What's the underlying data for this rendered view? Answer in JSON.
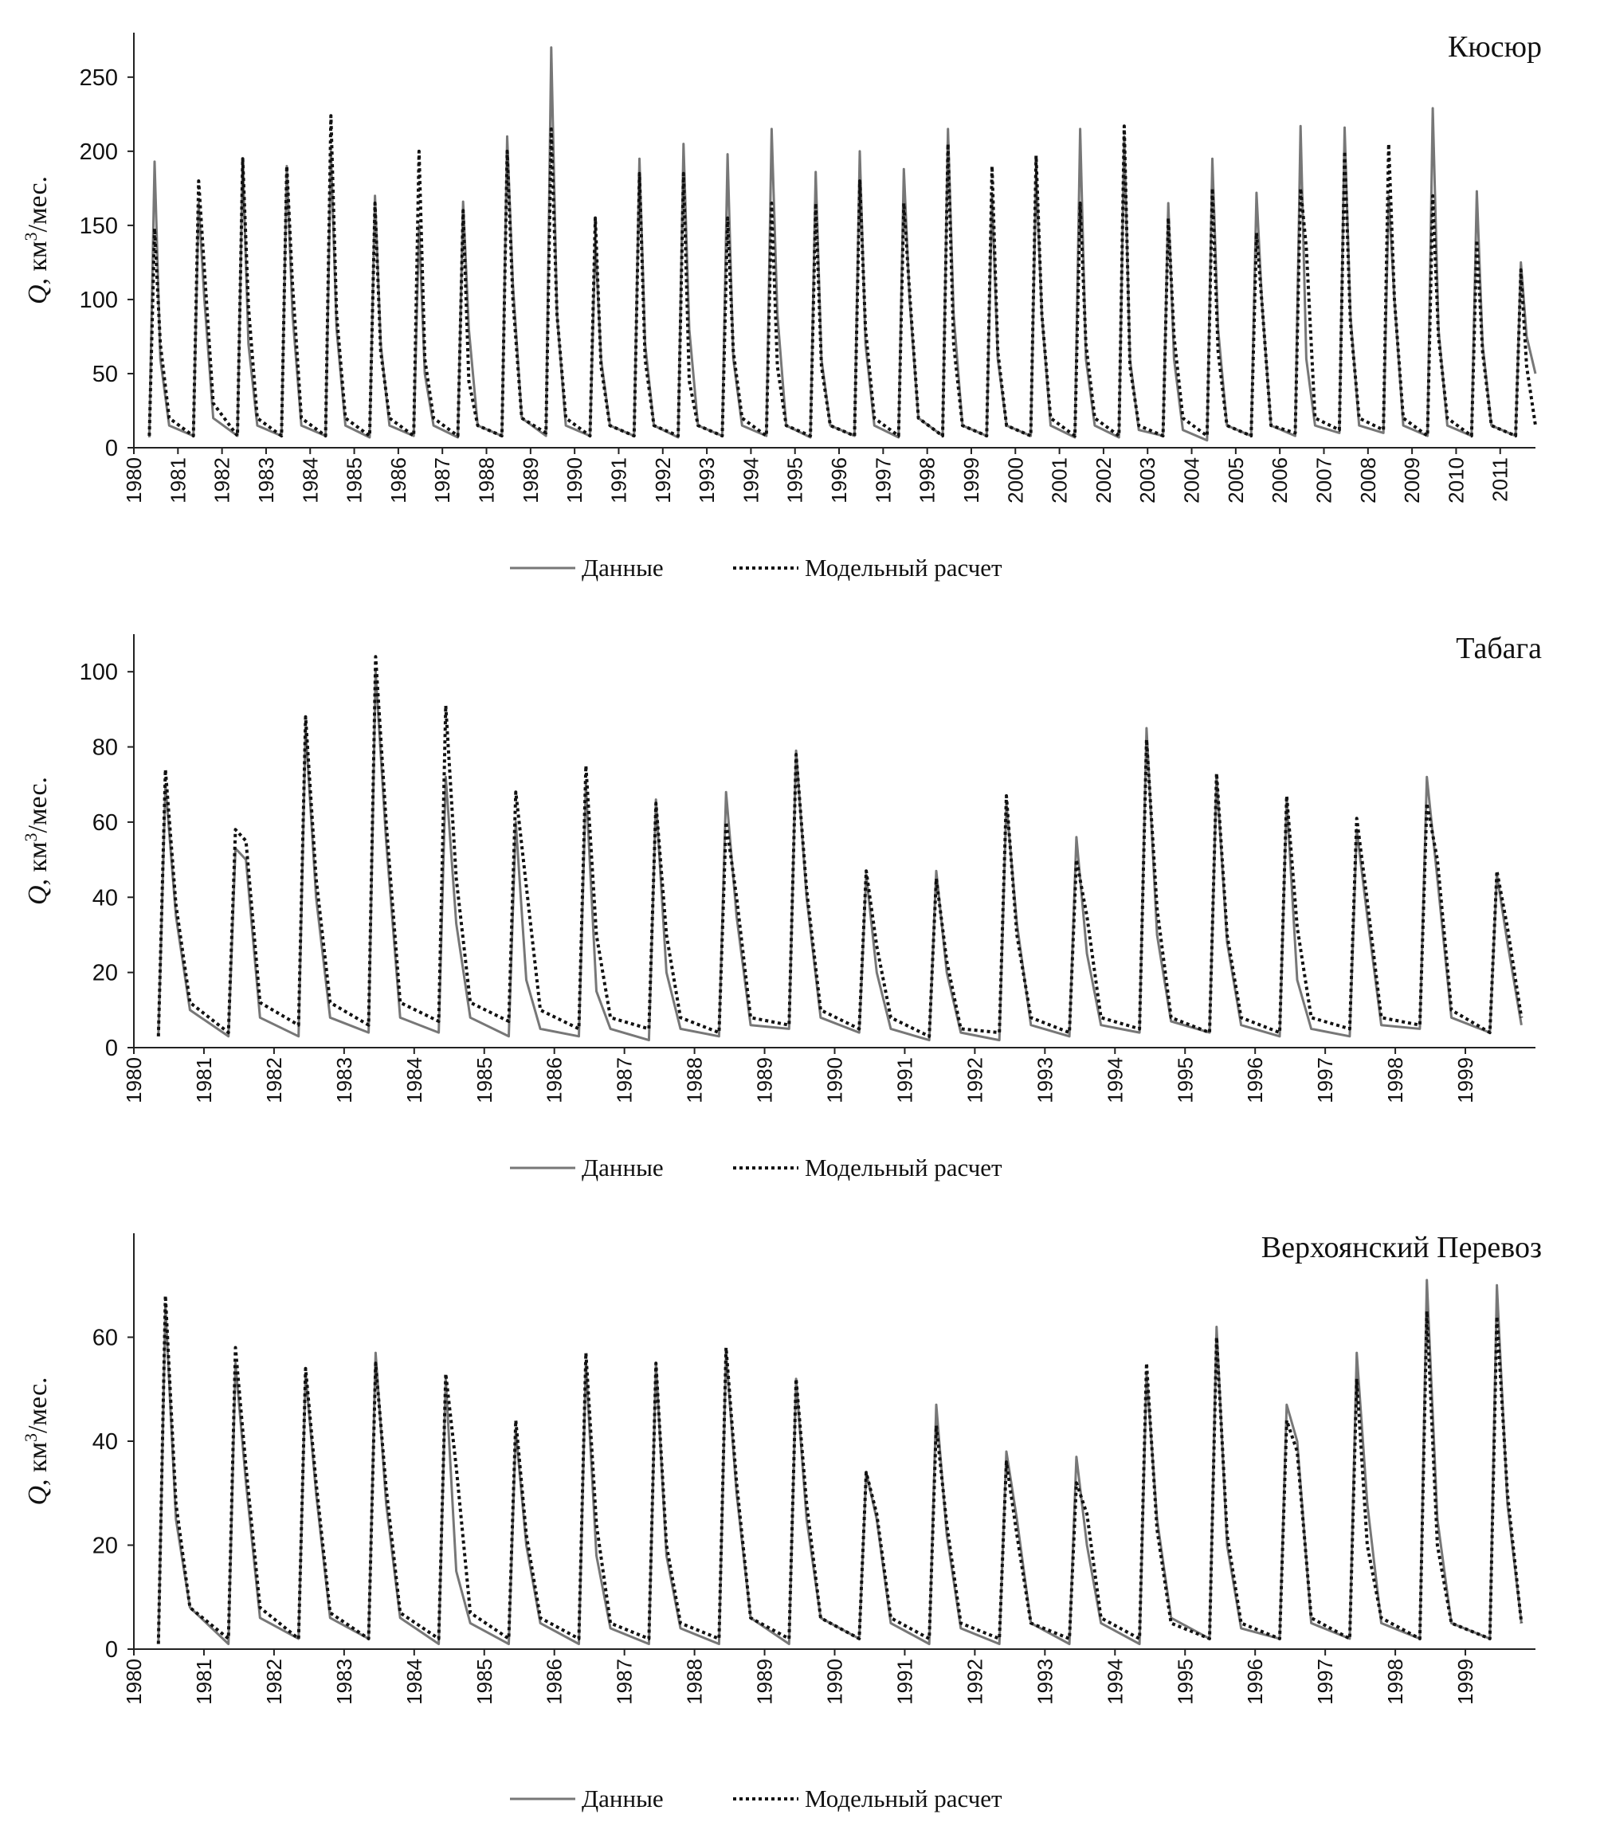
{
  "chart_data": [
    {
      "type": "line",
      "title": "Кюсюр",
      "ylabel": {
        "symbol": "Q",
        "unit": ", км",
        "power": "3",
        "rest": "/мес."
      },
      "x": [
        1980.35,
        1980.47,
        1980.6,
        1980.8,
        1981.35,
        1981.47,
        1981.6,
        1981.8,
        1982.35,
        1982.47,
        1982.6,
        1982.8,
        1983.35,
        1983.47,
        1983.6,
        1983.8,
        1984.35,
        1984.47,
        1984.6,
        1984.8,
        1985.35,
        1985.47,
        1985.6,
        1985.8,
        1986.35,
        1986.47,
        1986.6,
        1986.8,
        1987.35,
        1987.47,
        1987.6,
        1987.8,
        1988.35,
        1988.47,
        1988.6,
        1988.8,
        1989.35,
        1989.47,
        1989.6,
        1989.8,
        1990.35,
        1990.47,
        1990.6,
        1990.8,
        1991.35,
        1991.47,
        1991.6,
        1991.8,
        1992.35,
        1992.47,
        1992.6,
        1992.8,
        1993.35,
        1993.47,
        1993.6,
        1993.8,
        1994.35,
        1994.47,
        1994.6,
        1994.8,
        1995.35,
        1995.47,
        1995.6,
        1995.8,
        1996.35,
        1996.47,
        1996.6,
        1996.8,
        1997.35,
        1997.47,
        1997.6,
        1997.8,
        1998.35,
        1998.47,
        1998.6,
        1998.8,
        1999.35,
        1999.47,
        1999.6,
        1999.8,
        2000.35,
        2000.47,
        2000.6,
        2000.8,
        2001.35,
        2001.47,
        2001.6,
        2001.8,
        2002.35,
        2002.47,
        2002.6,
        2002.8,
        2003.35,
        2003.47,
        2003.6,
        2003.8,
        2004.35,
        2004.47,
        2004.6,
        2004.8,
        2005.35,
        2005.47,
        2005.6,
        2005.8,
        2006.35,
        2006.47,
        2006.6,
        2006.8,
        2007.35,
        2007.47,
        2007.6,
        2007.8,
        2008.35,
        2008.47,
        2008.6,
        2008.8,
        2009.35,
        2009.47,
        2009.6,
        2009.8,
        2010.35,
        2010.47,
        2010.6,
        2010.8,
        2011.35,
        2011.47,
        2011.6,
        2011.8
      ],
      "series": [
        {
          "name": "Данные",
          "color": "#777777",
          "style": "solid",
          "values": [
            7,
            193,
            60,
            15,
            8,
            165,
            100,
            20,
            8,
            195,
            70,
            15,
            8,
            190,
            90,
            15,
            8,
            200,
            80,
            15,
            7,
            170,
            70,
            15,
            8,
            150,
            50,
            15,
            7,
            166,
            80,
            15,
            8,
            210,
            110,
            20,
            8,
            270,
            90,
            15,
            8,
            140,
            60,
            15,
            8,
            195,
            70,
            15,
            7,
            205,
            80,
            15,
            8,
            198,
            60,
            15,
            8,
            215,
            90,
            15,
            7,
            186,
            60,
            15,
            8,
            200,
            70,
            15,
            7,
            188,
            100,
            20,
            8,
            215,
            90,
            15,
            8,
            170,
            60,
            15,
            8,
            185,
            90,
            15,
            7,
            215,
            60,
            15,
            7,
            210,
            60,
            12,
            8,
            165,
            60,
            12,
            5,
            195,
            80,
            15,
            8,
            172,
            95,
            15,
            8,
            217,
            60,
            15,
            10,
            216,
            90,
            15,
            10,
            170,
            100,
            15,
            8,
            229,
            80,
            15,
            8,
            173,
            70,
            15,
            8,
            125,
            75,
            50
          ]
        },
        {
          "name": "Модельный расчет",
          "color": "#111111",
          "style": "dotted",
          "values": [
            8,
            148,
            70,
            20,
            8,
            180,
            120,
            30,
            8,
            195,
            95,
            20,
            8,
            190,
            110,
            20,
            8,
            224,
            90,
            20,
            8,
            165,
            65,
            20,
            8,
            200,
            60,
            20,
            8,
            160,
            45,
            15,
            8,
            200,
            100,
            20,
            10,
            215,
            90,
            20,
            8,
            155,
            55,
            15,
            8,
            185,
            60,
            15,
            8,
            185,
            45,
            15,
            8,
            155,
            65,
            20,
            8,
            165,
            55,
            15,
            8,
            165,
            55,
            15,
            8,
            180,
            80,
            20,
            8,
            165,
            105,
            20,
            8,
            205,
            70,
            15,
            8,
            190,
            65,
            15,
            8,
            197,
            90,
            20,
            8,
            165,
            70,
            20,
            8,
            217,
            55,
            15,
            8,
            155,
            75,
            20,
            8,
            175,
            65,
            15,
            8,
            145,
            95,
            15,
            10,
            175,
            135,
            20,
            12,
            200,
            85,
            20,
            12,
            205,
            100,
            20,
            8,
            170,
            75,
            20,
            8,
            140,
            65,
            15,
            8,
            120,
            55,
            15
          ]
        }
      ],
      "xlim": [
        1980,
        2011.8
      ],
      "xticks": [
        1980,
        1981,
        1982,
        1983,
        1984,
        1985,
        1986,
        1987,
        1988,
        1989,
        1990,
        1991,
        1992,
        1993,
        1994,
        1995,
        1996,
        1997,
        1998,
        1999,
        2000,
        2001,
        2002,
        2003,
        2004,
        2005,
        2006,
        2007,
        2008,
        2009,
        2010,
        2011
      ],
      "ylim": [
        0,
        280
      ],
      "yticks": [
        0,
        50,
        100,
        150,
        200,
        250
      ],
      "grid": false,
      "legend": "bottom"
    },
    {
      "type": "line",
      "title": "Табага",
      "ylabel": {
        "symbol": "Q",
        "unit": ", км",
        "power": "3",
        "rest": "/мес."
      },
      "x": [
        1980.35,
        1980.45,
        1980.6,
        1980.8,
        1981.35,
        1981.45,
        1981.6,
        1981.8,
        1982.35,
        1982.45,
        1982.6,
        1982.8,
        1983.35,
        1983.45,
        1983.6,
        1983.8,
        1984.35,
        1984.45,
        1984.6,
        1984.8,
        1985.35,
        1985.45,
        1985.6,
        1985.8,
        1986.35,
        1986.45,
        1986.6,
        1986.8,
        1987.35,
        1987.45,
        1987.6,
        1987.8,
        1988.35,
        1988.45,
        1988.6,
        1988.8,
        1989.35,
        1989.45,
        1989.6,
        1989.8,
        1990.35,
        1990.45,
        1990.6,
        1990.8,
        1991.35,
        1991.45,
        1991.6,
        1991.8,
        1992.35,
        1992.45,
        1992.6,
        1992.8,
        1993.35,
        1993.45,
        1993.6,
        1993.8,
        1994.35,
        1994.45,
        1994.6,
        1994.8,
        1995.35,
        1995.45,
        1995.6,
        1995.8,
        1996.35,
        1996.45,
        1996.6,
        1996.8,
        1997.35,
        1997.45,
        1997.6,
        1997.8,
        1998.35,
        1998.45,
        1998.6,
        1998.8,
        1999.35,
        1999.45,
        1999.6,
        1999.8
      ],
      "series": [
        {
          "name": "Данные",
          "color": "#777777",
          "style": "solid",
          "values": [
            3,
            70,
            35,
            10,
            3,
            53,
            50,
            8,
            3,
            85,
            40,
            8,
            4,
            100,
            55,
            8,
            4,
            72,
            33,
            8,
            3,
            60,
            18,
            5,
            3,
            70,
            15,
            5,
            2,
            66,
            20,
            5,
            3,
            68,
            35,
            6,
            5,
            79,
            40,
            8,
            4,
            46,
            20,
            5,
            2,
            47,
            20,
            4,
            2,
            65,
            33,
            6,
            3,
            56,
            25,
            6,
            4,
            85,
            30,
            7,
            4,
            72,
            28,
            6,
            3,
            66,
            18,
            5,
            3,
            58,
            35,
            6,
            5,
            72,
            45,
            8,
            4,
            46,
            28,
            6
          ]
        },
        {
          "name": "Модельный расчет",
          "color": "#111111",
          "style": "dotted",
          "values": [
            3,
            74,
            38,
            12,
            4,
            58,
            55,
            12,
            6,
            88,
            45,
            12,
            6,
            104,
            60,
            12,
            7,
            91,
            45,
            12,
            7,
            68,
            43,
            10,
            5,
            75,
            30,
            8,
            5,
            65,
            30,
            8,
            4,
            60,
            40,
            8,
            6,
            78,
            42,
            10,
            5,
            47,
            27,
            8,
            3,
            45,
            23,
            5,
            4,
            67,
            30,
            8,
            4,
            50,
            35,
            8,
            5,
            82,
            37,
            8,
            4,
            73,
            30,
            8,
            4,
            67,
            32,
            8,
            5,
            61,
            39,
            8,
            6,
            65,
            50,
            10,
            4,
            47,
            32,
            8
          ]
        }
      ],
      "xlim": [
        1980,
        2000
      ],
      "xticks": [
        1980,
        1981,
        1982,
        1983,
        1984,
        1985,
        1986,
        1987,
        1988,
        1989,
        1990,
        1991,
        1992,
        1993,
        1994,
        1995,
        1996,
        1997,
        1998,
        1999
      ],
      "ylim": [
        0,
        110
      ],
      "yticks": [
        0,
        20,
        40,
        60,
        80,
        100
      ],
      "grid": false,
      "legend": "bottom"
    },
    {
      "type": "line",
      "title": "Верхоянский Перевоз",
      "ylabel": {
        "symbol": "Q",
        "unit": ", км",
        "power": "3",
        "rest": "/мес."
      },
      "x": [
        1980.35,
        1980.45,
        1980.6,
        1980.8,
        1981.35,
        1981.45,
        1981.6,
        1981.8,
        1982.35,
        1982.45,
        1982.6,
        1982.8,
        1983.35,
        1983.45,
        1983.6,
        1983.8,
        1984.35,
        1984.45,
        1984.6,
        1984.8,
        1985.35,
        1985.45,
        1985.6,
        1985.8,
        1986.35,
        1986.45,
        1986.6,
        1986.8,
        1987.35,
        1987.45,
        1987.6,
        1987.8,
        1988.35,
        1988.45,
        1988.6,
        1988.8,
        1989.35,
        1989.45,
        1989.6,
        1989.8,
        1990.35,
        1990.45,
        1990.6,
        1990.8,
        1991.35,
        1991.45,
        1991.6,
        1991.8,
        1992.35,
        1992.45,
        1992.6,
        1992.8,
        1993.35,
        1993.45,
        1993.6,
        1993.8,
        1994.35,
        1994.45,
        1994.6,
        1994.8,
        1995.35,
        1995.45,
        1995.6,
        1995.8,
        1996.35,
        1996.45,
        1996.6,
        1996.8,
        1997.35,
        1997.45,
        1997.6,
        1997.8,
        1998.35,
        1998.45,
        1998.6,
        1998.8,
        1999.35,
        1999.45,
        1999.6,
        1999.8
      ],
      "series": [
        {
          "name": "Данные",
          "color": "#777777",
          "style": "solid",
          "values": [
            1,
            66,
            25,
            8,
            1,
            55,
            32,
            6,
            2,
            53,
            30,
            6,
            2,
            57,
            28,
            6,
            1,
            52,
            15,
            5,
            1,
            42,
            20,
            5,
            1,
            55,
            18,
            4,
            1,
            55,
            18,
            4,
            1,
            57,
            30,
            6,
            1,
            52,
            25,
            6,
            2,
            34,
            25,
            5,
            1,
            47,
            22,
            4,
            1,
            38,
            25,
            5,
            1,
            37,
            20,
            5,
            1,
            53,
            25,
            6,
            2,
            62,
            20,
            4,
            2,
            47,
            40,
            5,
            2,
            57,
            28,
            5,
            2,
            71,
            25,
            5,
            2,
            70,
            28,
            5
          ]
        },
        {
          "name": "Модельный расчет",
          "color": "#111111",
          "style": "dotted",
          "values": [
            1,
            68,
            28,
            8,
            2,
            58,
            35,
            8,
            2,
            54,
            32,
            7,
            2,
            55,
            31,
            7,
            2,
            53,
            35,
            7,
            2,
            44,
            22,
            6,
            2,
            57,
            24,
            5,
            2,
            55,
            20,
            5,
            2,
            58,
            32,
            6,
            2,
            52,
            28,
            6,
            2,
            34,
            26,
            6,
            2,
            43,
            24,
            5,
            2,
            36,
            22,
            5,
            2,
            32,
            26,
            6,
            2,
            55,
            23,
            5,
            2,
            60,
            22,
            5,
            2,
            44,
            38,
            6,
            2,
            52,
            20,
            6,
            2,
            65,
            20,
            5,
            2,
            64,
            30,
            5
          ]
        }
      ],
      "xlim": [
        1980,
        2000
      ],
      "xticks": [
        1980,
        1981,
        1982,
        1983,
        1984,
        1985,
        1986,
        1987,
        1988,
        1989,
        1990,
        1991,
        1992,
        1993,
        1994,
        1995,
        1996,
        1997,
        1998,
        1999
      ],
      "ylim": [
        0,
        80
      ],
      "yticks": [
        0,
        20,
        40,
        60
      ],
      "grid": false,
      "legend": "bottom"
    }
  ]
}
